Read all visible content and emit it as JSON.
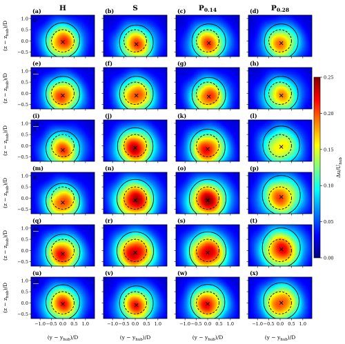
{
  "chart_data": {
    "type": "heatmap",
    "columns": [
      "H",
      "S",
      "P",
      "P"
    ],
    "column_subscripts": [
      "",
      "",
      "0.14",
      "0.28"
    ],
    "panel_labels": [
      "(a)",
      "(b)",
      "(c)",
      "(d)",
      "(e)",
      "(f)",
      "(g)",
      "(h)",
      "(i)",
      "(j)",
      "(k)",
      "(l)",
      "(m)",
      "(n)",
      "(o)",
      "(p)",
      "(q)",
      "(r)",
      "(s)",
      "(t)",
      "(u)",
      "(v)",
      "(w)",
      "(x)"
    ],
    "row_phase_labels": [
      {
        "text": "0",
        "num": "",
        "den": ""
      },
      {
        "text": "",
        "num": "π",
        "den": "3"
      },
      {
        "text": "",
        "num": "2π",
        "den": "3"
      },
      {
        "text": "π",
        "num": "",
        "den": ""
      },
      {
        "text": "",
        "num": "4π",
        "den": "3"
      },
      {
        "text": "",
        "num": "5π",
        "den": "3"
      }
    ],
    "xlabel": "(y − y",
    "xlabel_sub": "hub",
    "xlabel_tail": ")/D",
    "ylabel": "(z − z",
    "ylabel_sub": "hub",
    "ylabel_tail": ")/D",
    "x_ticks": [
      "−1.0",
      "−0.5",
      "0.0",
      "0.5",
      "1.0"
    ],
    "y_ticks": [
      "1.0",
      "0.5",
      "0.0",
      "−0.5"
    ],
    "xlim": [
      -1.4,
      1.4
    ],
    "ylim": [
      -0.7,
      1.15
    ],
    "colorbar": {
      "label": "Δu/U",
      "label_sub": "hub",
      "ticks": [
        "0.25",
        "0.20",
        "0.15",
        "0.10",
        "0.05",
        "0.00"
      ],
      "range": [
        0.0,
        0.25
      ],
      "colormap": [
        "#00007f",
        "#0000ff",
        "#007fff",
        "#00ffff",
        "#7fff7f",
        "#ffff00",
        "#ff7f00",
        "#ff0000",
        "#7f0000"
      ]
    },
    "panels": [
      [
        {
          "cx": 0.0,
          "cz": -0.05,
          "peak": 0.21,
          "spread": 0.55
        },
        {
          "cx": 0.05,
          "cz": -0.15,
          "peak": 0.2,
          "spread": 0.55
        },
        {
          "cx": 0.05,
          "cz": -0.1,
          "peak": 0.2,
          "spread": 0.55
        },
        {
          "cx": 0.05,
          "cz": -0.1,
          "peak": 0.19,
          "spread": 0.55
        }
      ],
      [
        {
          "cx": 0.0,
          "cz": -0.1,
          "peak": 0.21,
          "spread": 0.55
        },
        {
          "cx": 0.05,
          "cz": -0.1,
          "peak": 0.21,
          "spread": 0.55
        },
        {
          "cx": 0.05,
          "cz": -0.15,
          "peak": 0.21,
          "spread": 0.55
        },
        {
          "cx": 0.05,
          "cz": -0.1,
          "peak": 0.18,
          "spread": 0.55
        }
      ],
      [
        {
          "cx": 0.0,
          "cz": -0.2,
          "peak": 0.2,
          "spread": 0.55
        },
        {
          "cx": 0.0,
          "cz": -0.1,
          "peak": 0.23,
          "spread": 0.58
        },
        {
          "cx": 0.0,
          "cz": -0.15,
          "peak": 0.22,
          "spread": 0.57
        },
        {
          "cx": 0.05,
          "cz": -0.05,
          "peak": 0.17,
          "spread": 0.6
        }
      ],
      [
        {
          "cx": 0.0,
          "cz": -0.2,
          "peak": 0.21,
          "spread": 0.55
        },
        {
          "cx": 0.0,
          "cz": -0.1,
          "peak": 0.24,
          "spread": 0.6
        },
        {
          "cx": 0.0,
          "cz": -0.1,
          "peak": 0.24,
          "spread": 0.6
        },
        {
          "cx": 0.05,
          "cz": 0.05,
          "peak": 0.2,
          "spread": 0.62
        }
      ],
      [
        {
          "cx": 0.0,
          "cz": -0.15,
          "peak": 0.22,
          "spread": 0.56
        },
        {
          "cx": 0.0,
          "cz": -0.1,
          "peak": 0.24,
          "spread": 0.6
        },
        {
          "cx": 0.0,
          "cz": -0.1,
          "peak": 0.24,
          "spread": 0.6
        },
        {
          "cx": 0.05,
          "cz": 0.05,
          "peak": 0.22,
          "spread": 0.62
        }
      ],
      [
        {
          "cx": 0.0,
          "cz": -0.05,
          "peak": 0.21,
          "spread": 0.55
        },
        {
          "cx": 0.05,
          "cz": -0.1,
          "peak": 0.21,
          "spread": 0.55
        },
        {
          "cx": 0.0,
          "cz": -0.05,
          "peak": 0.22,
          "spread": 0.56
        },
        {
          "cx": 0.05,
          "cz": 0.0,
          "peak": 0.21,
          "spread": 0.58
        }
      ]
    ]
  }
}
